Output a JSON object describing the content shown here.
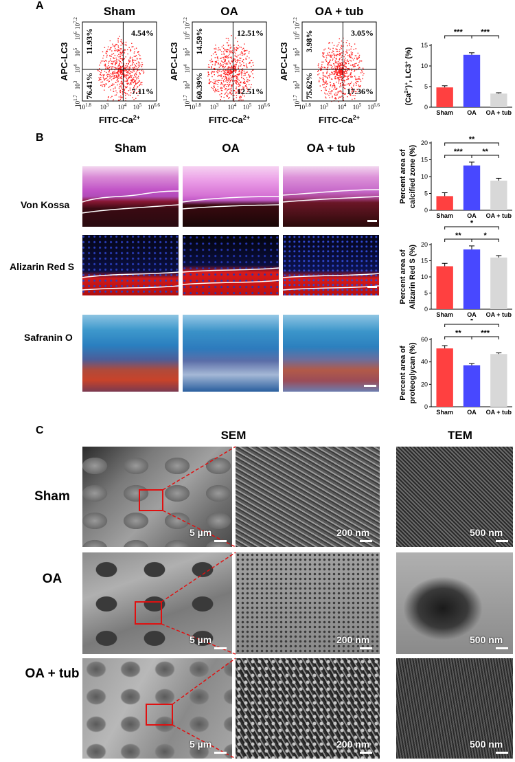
{
  "panel_a": {
    "letter": "A",
    "flow_plots": [
      {
        "title": "Sham",
        "q_ul": "11.93%",
        "q_ur": "4.54%",
        "q_ll": "76.41%",
        "q_lr": "7.11%"
      },
      {
        "title": "OA",
        "q_ul": "14.59%",
        "q_ur": "12.51%",
        "q_ll": "60.39%",
        "q_lr": "12.51%"
      },
      {
        "title": "OA + tub",
        "q_ul": "3.98%",
        "q_ur": "3.05%",
        "q_ll": "75.62%",
        "q_lr": "17.36%"
      }
    ],
    "flow_axes": {
      "ylabel": "APC-LC3",
      "xlabel_main": "FITC-Ca",
      "xlabel_sup": "2+",
      "yticks": [
        {
          "base": "10",
          "exp": "7.2"
        },
        {
          "base": "10",
          "exp": "6"
        },
        {
          "base": "10",
          "exp": "5"
        },
        {
          "base": "10",
          "exp": "4"
        },
        {
          "base": "10",
          "exp": "3"
        },
        {
          "base": "10",
          "exp": "1.7"
        }
      ],
      "xticks": [
        {
          "base": "10",
          "exp": "1.8"
        },
        {
          "base": "10",
          "exp": "3"
        },
        {
          "base": "10",
          "exp": "4"
        },
        {
          "base": "10",
          "exp": "5"
        },
        {
          "base": "10",
          "exp": "6.6"
        }
      ]
    },
    "bar_ylabel_parts": [
      "(Ca",
      "2+",
      ")",
      "+",
      ", LC3",
      "+",
      " (%)"
    ],
    "sig_labels": [
      "***",
      "***"
    ]
  },
  "panel_b": {
    "letter": "B",
    "col_titles": [
      "Sham",
      "OA",
      "OA + tub"
    ],
    "row_labels": [
      "Von Kossa",
      "Alizarin Red S",
      "Safranin O"
    ],
    "charts": [
      {
        "ylabel_line1": "Percent area of",
        "ylabel_line2": "calcified zone (%)",
        "sig": [
          "**",
          "***",
          "**"
        ]
      },
      {
        "ylabel_line1": "Percent area of",
        "ylabel_line2": "Alizarin Red S (%)",
        "sig": [
          "*",
          "**",
          "*"
        ]
      },
      {
        "ylabel_line1": "Percent area of",
        "ylabel_line2": "proteoglycan (%)",
        "sig": [
          "*",
          "**",
          "***"
        ]
      }
    ]
  },
  "panel_c": {
    "letter": "C",
    "col_titles": [
      "SEM",
      "TEM"
    ],
    "row_labels": [
      "Sham",
      "OA",
      "OA + tub"
    ],
    "scale_labels": {
      "low": "5 µm",
      "high": "200 nm",
      "tem": "500 nm"
    }
  },
  "chart_data": [
    {
      "type": "bar",
      "categories": [
        "Sham",
        "OA",
        "OA + tub"
      ],
      "values": [
        4.8,
        12.7,
        3.3
      ],
      "errors": [
        0.4,
        0.5,
        0.2
      ],
      "yticks": [
        0,
        5,
        10,
        15
      ],
      "ylim": [
        0,
        15
      ],
      "colors": [
        "#ff4040",
        "#4848ff",
        "#d8d8d8"
      ]
    },
    {
      "type": "bar",
      "categories": [
        "Sham",
        "OA",
        "OA + tub"
      ],
      "values": [
        4.2,
        13.3,
        8.8
      ],
      "errors": [
        1.0,
        1.0,
        0.7
      ],
      "yticks": [
        0,
        5,
        10,
        15,
        20
      ],
      "ylim": [
        0,
        20
      ],
      "colors": [
        "#ff4040",
        "#4848ff",
        "#d8d8d8"
      ]
    },
    {
      "type": "bar",
      "categories": [
        "Sham",
        "OA",
        "OA + tub"
      ],
      "values": [
        13.3,
        18.5,
        16.0
      ],
      "errors": [
        0.9,
        1.1,
        0.6
      ],
      "yticks": [
        0,
        5,
        10,
        15,
        20
      ],
      "ylim": [
        0,
        20
      ],
      "colors": [
        "#ff4040",
        "#4848ff",
        "#d8d8d8"
      ]
    },
    {
      "type": "bar",
      "categories": [
        "Sham",
        "OA",
        "OA + tub"
      ],
      "values": [
        52,
        37,
        47
      ],
      "errors": [
        2.5,
        1.5,
        1.0
      ],
      "yticks": [
        0,
        20,
        40,
        60
      ],
      "ylim": [
        0,
        60
      ],
      "colors": [
        "#ff4040",
        "#4848ff",
        "#d8d8d8"
      ]
    }
  ]
}
